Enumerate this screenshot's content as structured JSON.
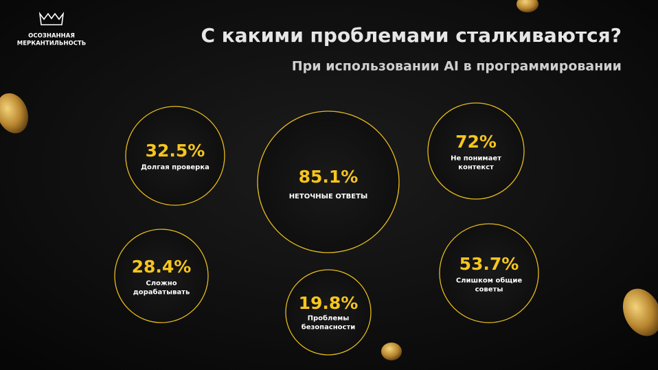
{
  "brand": [
    "ОСОЗНАННАЯ",
    "МЕРКАНТИЛЬНОСТЬ"
  ],
  "title": "С какими проблемами сталкиваются?",
  "subtitle": "При использовании AI в программировании",
  "items": [
    {
      "value": "32.5%",
      "label": [
        "Долгая проверка"
      ]
    },
    {
      "value": "85.1%",
      "label": [
        "НЕТОЧНЫЕ ОТВЕТЫ"
      ]
    },
    {
      "value": "72%",
      "label": [
        "Не понимает",
        "контекст"
      ]
    },
    {
      "value": "28.4%",
      "label": [
        "Сложно",
        "дорабатывать"
      ]
    },
    {
      "value": "19.8%",
      "label": [
        "Проблемы",
        "безопасности"
      ]
    },
    {
      "value": "53.7%",
      "label": [
        "Слишком общие",
        "советы"
      ]
    }
  ]
}
